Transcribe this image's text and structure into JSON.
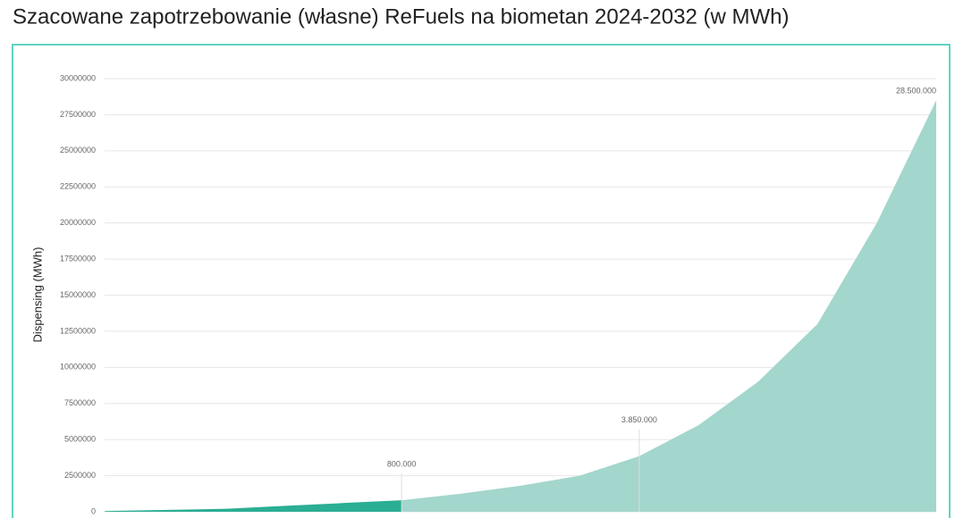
{
  "chart_data": {
    "type": "area",
    "title": "Szacowane zapotrzebowanie (własne) ReFuels na biometan 2024-2032 (w MWh)",
    "y_label": "Dispensing (MWh)",
    "categories": [
      null,
      null,
      null,
      null,
      null,
      null,
      null,
      null,
      null,
      null,
      null,
      null,
      null,
      null,
      null
    ],
    "series": [
      {
        "color": "#2aae94",
        "values": [
          50000,
          120000,
          200000,
          400000,
          600000,
          800000,
          null,
          null,
          null,
          null,
          null,
          null,
          null,
          null,
          null
        ],
        "value_labels": [
          null,
          null,
          null,
          null,
          null,
          "800.000",
          null,
          null,
          null,
          null,
          null,
          null,
          null,
          null,
          null
        ]
      },
      {
        "color": "#a3d6cc",
        "values": [
          null,
          null,
          null,
          null,
          null,
          800000,
          1250000,
          1800000,
          2500000,
          3850000,
          6000000,
          9000000,
          13000000,
          20000000,
          28500000
        ],
        "value_labels": [
          null,
          null,
          null,
          null,
          null,
          null,
          null,
          null,
          null,
          "3.850.000",
          null,
          null,
          null,
          null,
          "28.500.000"
        ]
      }
    ],
    "ylim": [
      0,
      30000000
    ],
    "yticks": [
      0,
      2500000,
      5000000,
      7500000,
      10000000,
      12500000,
      15000000,
      17500000,
      20000000,
      22500000,
      25000000,
      27500000,
      30000000
    ],
    "grid": true
  }
}
